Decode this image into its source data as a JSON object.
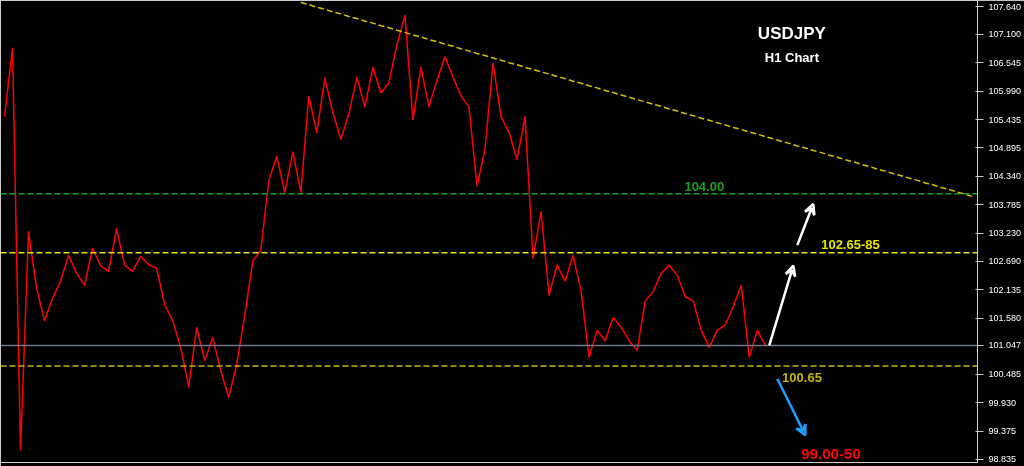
{
  "chart_data": {
    "type": "line",
    "title": "USDJPY",
    "subtitle": "H1 Chart",
    "categories": [
      null,
      null,
      null,
      null,
      null,
      null,
      null,
      null,
      null,
      null,
      null,
      null,
      null,
      null,
      null,
      null,
      null,
      null,
      null,
      null,
      null,
      null,
      null,
      null,
      null,
      null,
      null,
      null,
      null,
      null,
      null,
      null,
      null,
      null,
      null,
      null,
      null,
      null,
      null,
      null,
      null,
      null,
      null,
      null,
      null,
      null,
      null,
      null,
      null,
      null,
      null,
      null,
      null,
      null,
      null,
      null,
      null,
      null,
      null,
      null,
      null,
      null,
      null,
      null,
      null,
      null,
      null,
      null,
      null,
      null,
      null,
      null,
      null,
      null,
      null,
      null,
      null,
      null,
      null,
      null,
      null,
      null,
      null,
      null,
      null,
      null,
      null,
      null,
      null,
      null,
      null,
      null,
      null,
      null,
      null,
      null,
      null,
      null,
      null,
      null,
      null,
      null,
      null,
      null,
      null,
      null,
      null,
      null,
      null,
      null,
      null,
      null,
      null,
      null,
      null,
      null,
      null,
      null,
      null,
      null,
      null,
      null
    ],
    "ylim": [
      98.77,
      107.76
    ],
    "yticks": [
      {
        "value": 107.64,
        "label": "107.640"
      },
      {
        "value": 107.1,
        "label": "107.100"
      },
      {
        "value": 106.545,
        "label": "106.545"
      },
      {
        "value": 105.99,
        "label": "105.990"
      },
      {
        "value": 105.435,
        "label": "105.435"
      },
      {
        "value": 104.895,
        "label": "104.895"
      },
      {
        "value": 104.34,
        "label": "104.340"
      },
      {
        "value": 103.785,
        "label": "103.785"
      },
      {
        "value": 103.23,
        "label": "103.230"
      },
      {
        "value": 102.69,
        "label": "102.690"
      },
      {
        "value": 102.135,
        "label": "102.135"
      },
      {
        "value": 101.58,
        "label": "101.580"
      },
      {
        "value": 101.047,
        "label": "101.047"
      },
      {
        "value": 100.485,
        "label": "100.485"
      },
      {
        "value": 99.93,
        "label": "99.930"
      },
      {
        "value": 99.375,
        "label": "99.375"
      },
      {
        "value": 98.835,
        "label": "98.835"
      }
    ],
    "tick_labels": "y",
    "grid": false,
    "series": [
      {
        "color": "#ff0000",
        "values": [
          105.5,
          106.83,
          99.02,
          103.26,
          102.16,
          101.53,
          101.97,
          102.3,
          102.8,
          102.45,
          102.22,
          102.94,
          102.6,
          102.49,
          103.32,
          102.61,
          102.49,
          102.78,
          102.62,
          102.55,
          101.84,
          101.53,
          101.01,
          100.24,
          101.39,
          100.76,
          101.2,
          100.56,
          100.04,
          100.68,
          101.64,
          102.69,
          102.9,
          104.25,
          104.73,
          104.03,
          104.81,
          104.03,
          105.89,
          105.19,
          106.25,
          105.58,
          105.06,
          105.55,
          106.27,
          105.69,
          106.46,
          105.96,
          106.16,
          106.9,
          107.47,
          105.44,
          106.46,
          105.69,
          106.21,
          106.66,
          106.27,
          105.9,
          105.69,
          104.15,
          104.86,
          106.54,
          105.5,
          105.19,
          104.67,
          105.5,
          102.74,
          103.65,
          102.03,
          102.61,
          102.3,
          102.8,
          102.1,
          100.82,
          101.34,
          101.14,
          101.59,
          101.4,
          101.14,
          100.95,
          101.91,
          102.1,
          102.45,
          102.61,
          102.42,
          102.0,
          101.91,
          101.34,
          101.01,
          101.34,
          101.45,
          101.8,
          102.22,
          100.82,
          101.34,
          101.05,
          null,
          null,
          null,
          null,
          null,
          null,
          null,
          null,
          null,
          null,
          null,
          null,
          null,
          null,
          null,
          null,
          null,
          null,
          null,
          null,
          null,
          null,
          null,
          null,
          null,
          null
        ]
      },
      {
        "color": "#d4c400",
        "line_style": "dashed",
        "values": [
          null,
          null,
          null,
          null,
          null,
          null,
          null,
          null,
          null,
          null,
          null,
          null,
          null,
          null,
          null,
          null,
          null,
          null,
          null,
          null,
          null,
          null,
          null,
          null,
          null,
          null,
          null,
          null,
          null,
          null,
          null,
          null,
          null,
          null,
          null,
          null,
          null,
          107.72,
          107.68,
          107.63,
          107.59,
          107.54,
          107.5,
          107.45,
          107.41,
          107.36,
          107.32,
          107.27,
          107.23,
          107.18,
          107.14,
          107.09,
          107.05,
          107.0,
          106.96,
          106.91,
          106.87,
          106.82,
          106.78,
          106.73,
          106.69,
          106.64,
          106.6,
          106.55,
          106.51,
          106.46,
          106.42,
          106.37,
          106.33,
          106.28,
          106.24,
          106.19,
          106.15,
          106.1,
          106.06,
          106.01,
          105.97,
          105.92,
          105.88,
          105.83,
          105.79,
          105.74,
          105.7,
          105.65,
          105.61,
          105.56,
          105.52,
          105.47,
          105.43,
          105.38,
          105.34,
          105.29,
          105.25,
          105.2,
          105.16,
          105.11,
          105.07,
          105.02,
          104.98,
          104.93,
          104.89,
          104.84,
          104.8,
          104.75,
          104.71,
          104.66,
          104.62,
          104.57,
          104.53,
          104.48,
          104.44,
          104.39,
          104.35,
          104.3,
          104.26,
          104.21,
          104.17,
          104.12,
          104.08,
          104.03,
          103.99,
          103.94
        ]
      }
    ],
    "ref_lines": [
      {
        "axis": "y",
        "value": 104.0,
        "label": "104.00",
        "color": "#1f9e1f",
        "line_style": "dashed"
      },
      {
        "axis": "y",
        "value": 100.65,
        "label": "100.65",
        "color": "#c8b400",
        "line_style": "dashed"
      },
      {
        "axis": "y",
        "value": 101.047,
        "color": "#6b7686",
        "line_style": "solid"
      },
      {
        "axis": "y",
        "value": 102.85,
        "color": "#e6e600",
        "line_style": "dashed"
      }
    ],
    "annotations": [
      "102.65-85",
      "99.00-50"
    ]
  }
}
